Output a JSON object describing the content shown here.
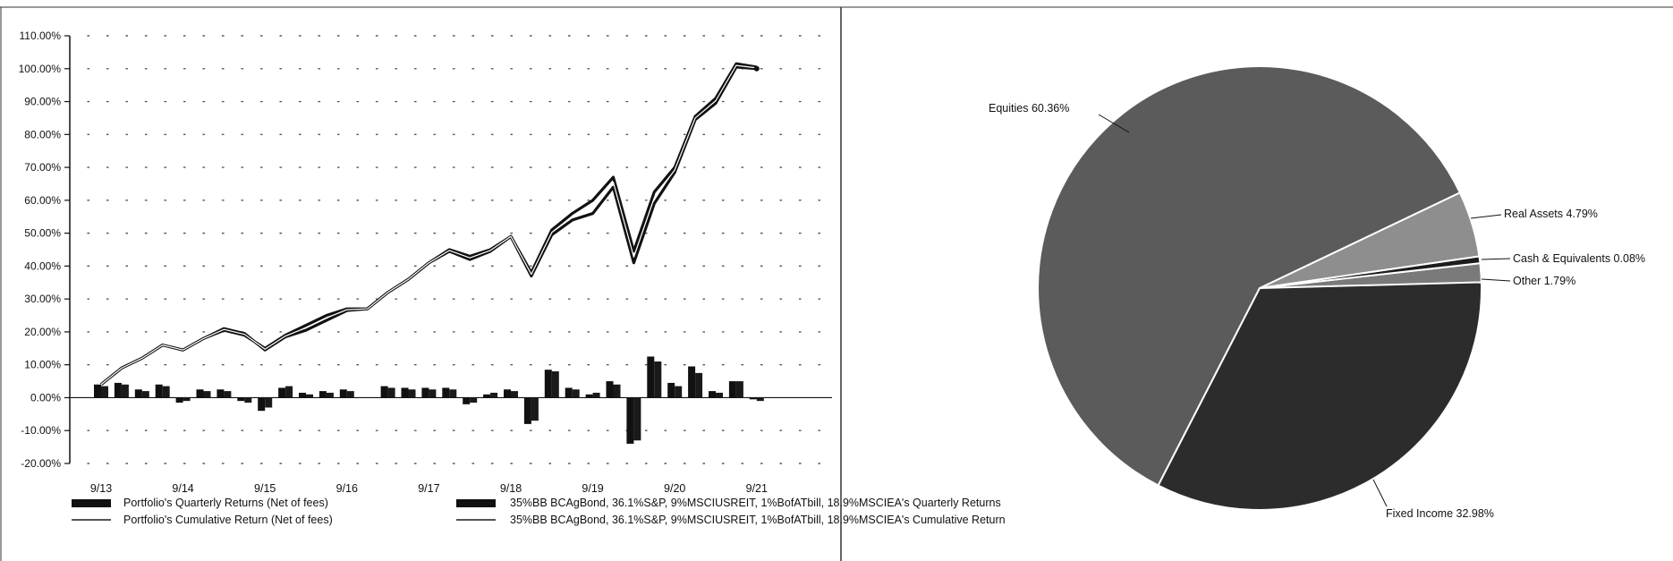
{
  "colors": {
    "axis": "#111111",
    "portfolio_bar": "#111111",
    "benchmark_bar": "#1a1a1a",
    "portfolio_line": "#111111",
    "benchmark_line": "#111111",
    "grid_dot": "#555555",
    "pie_equities": "#5b5b5b",
    "pie_real_assets": "#8e8e8e",
    "pie_cash": "#1c1c1c",
    "pie_other": "#7a7a7a",
    "pie_fixed_income": "#2c2c2c",
    "pie_separator": "#ffffff"
  },
  "chart_data": [
    {
      "type": "bar",
      "ylim": [
        -20,
        110
      ],
      "y_ticks": [
        "-20.00%",
        "-10.00%",
        "0.00%",
        "10.00%",
        "20.00%",
        "30.00%",
        "40.00%",
        "50.00%",
        "60.00%",
        "70.00%",
        "80.00%",
        "90.00%",
        "100.00%",
        "110.00%"
      ],
      "x_ticks": [
        {
          "q": 0,
          "label": "9/13"
        },
        {
          "q": 4,
          "label": "9/14"
        },
        {
          "q": 8,
          "label": "9/15"
        },
        {
          "q": 12,
          "label": "9/16"
        },
        {
          "q": 16,
          "label": "9/17"
        },
        {
          "q": 20,
          "label": "9/18"
        },
        {
          "q": 24,
          "label": "9/19"
        },
        {
          "q": 28,
          "label": "9/20"
        },
        {
          "q": 32,
          "label": "9/21"
        }
      ],
      "quarters": [
        0,
        1,
        2,
        3,
        4,
        5,
        6,
        7,
        8,
        9,
        10,
        11,
        12,
        13,
        14,
        15,
        16,
        17,
        18,
        19,
        20,
        21,
        22,
        23,
        24,
        25,
        26,
        27,
        28,
        29,
        30,
        31,
        32
      ],
      "legend": [
        {
          "key": "portfolio_quarterly",
          "label": "Portfolio's Quarterly Returns (Net of fees)",
          "style": "bar"
        },
        {
          "key": "portfolio_cumulative",
          "label": "Portfolio's Cumulative Return (Net of fees)",
          "style": "line"
        },
        {
          "key": "benchmark_quarterly",
          "label": "35%BB BCAgBond, 36.1%S&P, 9%MSCIUSREIT, 1%BofATbill, 18.9%MSCIEA's Quarterly Returns",
          "style": "bar"
        },
        {
          "key": "benchmark_cumulative",
          "label": "35%BB BCAgBond, 36.1%S&P, 9%MSCIUSREIT, 1%BofATbill, 18.9%MSCIEA's Cumulative Return",
          "style": "line"
        }
      ],
      "series": [
        {
          "key": "portfolio_quarterly",
          "type": "bar",
          "values": [
            4.0,
            4.5,
            2.5,
            4.0,
            -1.5,
            2.5,
            2.5,
            -1.0,
            -4.0,
            3.0,
            1.5,
            2.0,
            2.5,
            0,
            3.5,
            3.0,
            3.0,
            3.0,
            -2.0,
            1.0,
            2.5,
            -8.0,
            8.5,
            3.0,
            1.0,
            5.0,
            -14.0,
            12.5,
            4.5,
            9.5,
            2.0,
            5.0,
            -0.5
          ]
        },
        {
          "key": "benchmark_quarterly",
          "type": "bar",
          "values": [
            3.5,
            4.0,
            2.0,
            3.5,
            -1.0,
            2.0,
            2.0,
            -1.5,
            -3.0,
            3.5,
            1.0,
            1.5,
            2.0,
            0,
            3.0,
            2.5,
            2.5,
            2.5,
            -1.5,
            1.5,
            2.0,
            -7.0,
            8.0,
            2.5,
            1.5,
            4.0,
            -13.0,
            11.0,
            3.5,
            7.5,
            1.5,
            5.0,
            -1.0
          ]
        },
        {
          "key": "portfolio_cumulative",
          "type": "line",
          "values": [
            4,
            9,
            12,
            16,
            14.5,
            18,
            21,
            19.5,
            14.5,
            18.5,
            20.5,
            23.5,
            26.5,
            27,
            32,
            36,
            41,
            44.5,
            42,
            44.5,
            49,
            37,
            49.5,
            54,
            56,
            64,
            41,
            59,
            68.5,
            84.5,
            89.5,
            100.5,
            100
          ]
        },
        {
          "key": "benchmark_cumulative",
          "type": "line",
          "values": [
            4,
            9,
            12,
            16,
            14.5,
            18,
            20.5,
            19,
            15,
            19,
            22,
            25,
            27,
            27,
            32,
            36,
            41,
            45,
            43,
            45,
            49,
            38,
            51,
            56,
            60,
            67,
            44.5,
            62.5,
            70,
            85.5,
            91,
            101.5,
            100.5
          ]
        }
      ]
    },
    {
      "type": "pie",
      "slices": [
        {
          "key": "equities",
          "label": "Equities 60.36%",
          "value": 60.36
        },
        {
          "key": "real_assets",
          "label": "Real Assets 4.79%",
          "value": 4.79
        },
        {
          "key": "cash",
          "label": "Cash & Equivalents 0.08%",
          "value": 0.08
        },
        {
          "key": "other",
          "label": "Other 1.79%",
          "value": 1.79
        },
        {
          "key": "fixed_income",
          "label": "Fixed Income 32.98%",
          "value": 32.98
        }
      ]
    }
  ]
}
